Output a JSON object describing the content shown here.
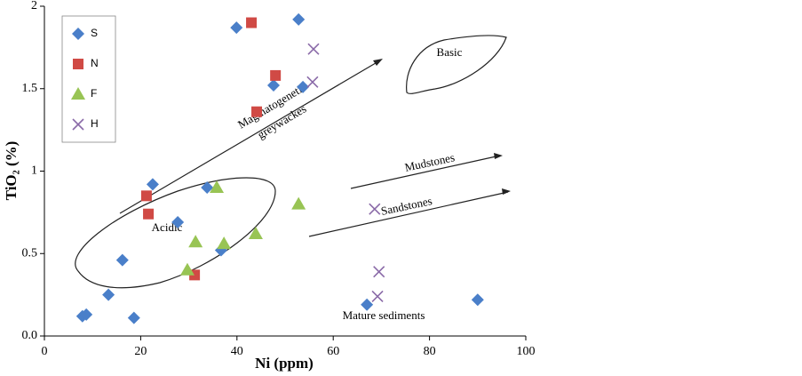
{
  "chart_data": {
    "type": "scatter",
    "xlabel": "Ni (ppm)",
    "ylabel": "TiO₂ (%)",
    "xlim": [
      0,
      100
    ],
    "xticks": [
      0,
      20,
      40,
      60,
      80,
      100
    ],
    "ylim": [
      0,
      2
    ],
    "yticks": [
      {
        "value": 0,
        "label": "0.0"
      },
      0.5,
      1,
      1.5,
      2
    ],
    "legend": "upper left",
    "annotations": [
      "Basic",
      "Magmatogenetic",
      "greywackes",
      "Mudstones",
      "Sandstones",
      "Acidic",
      "Mature sediments"
    ],
    "series": [
      {
        "name": "S",
        "color": "#4a7fc9",
        "marker": "diamond",
        "x": [
          7.9,
          8.7,
          13.3,
          16.2,
          18.6,
          22.5,
          27.7,
          33.8,
          36.7,
          39.9,
          47.6,
          52.8,
          53.7,
          67,
          90
        ],
        "values": [
          0.12,
          0.13,
          0.25,
          0.46,
          0.11,
          0.92,
          0.69,
          0.9,
          0.52,
          1.87,
          1.52,
          1.92,
          1.51,
          0.19,
          0.22
        ]
      },
      {
        "name": "N",
        "color": "#d04a45",
        "marker": "square",
        "x": [
          21.2,
          21.6,
          31.2,
          43,
          44.1,
          48
        ],
        "values": [
          0.85,
          0.74,
          0.37,
          1.9,
          1.36,
          1.58
        ]
      },
      {
        "name": "F",
        "color": "#98c454",
        "marker": "triangle",
        "x": [
          31.4,
          29.7,
          35.8,
          37.3,
          43.9,
          52.8
        ],
        "values": [
          0.57,
          0.4,
          0.9,
          0.56,
          0.62,
          0.8
        ]
      },
      {
        "name": "H",
        "color": "#8a6aa8",
        "marker": "x",
        "x": [
          55.9,
          55.7,
          68.6,
          69.5,
          69.2
        ],
        "values": [
          1.74,
          1.54,
          0.77,
          0.39,
          0.24
        ]
      }
    ]
  }
}
